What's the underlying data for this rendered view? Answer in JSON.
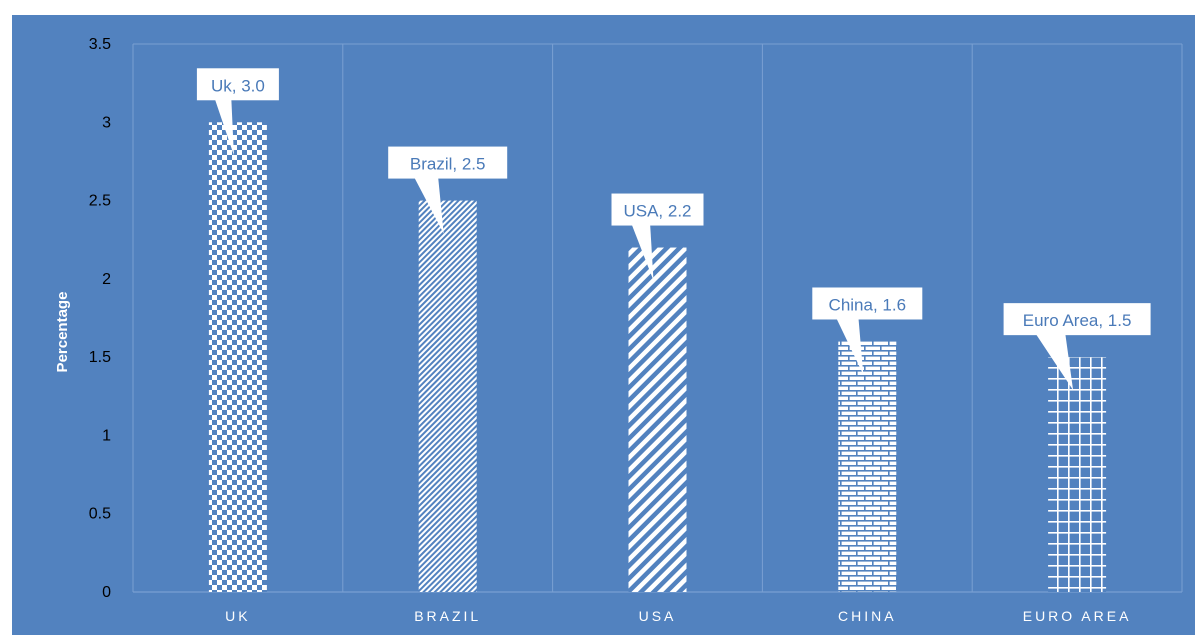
{
  "colors": {
    "background": "#5282bf",
    "bar_pattern": "#ffffff",
    "gridline": "#7aa0d2",
    "label_text": "#4a7ab8"
  },
  "chart_data": {
    "type": "bar",
    "title": "",
    "xlabel": "",
    "ylabel": "Percentage",
    "ylim": [
      0,
      3.5
    ],
    "yticks": [
      "0",
      "0.5",
      "1",
      "1.5",
      "2",
      "2.5",
      "3",
      "3.5"
    ],
    "categories": [
      "UK",
      "BRAZIL",
      "USA",
      "CHINA",
      "EURO AREA"
    ],
    "values": [
      3.0,
      2.5,
      2.2,
      1.6,
      1.5
    ],
    "data_labels": [
      "Uk, 3.0",
      "Brazil, 2.5",
      "USA, 2.2",
      "China, 1.6",
      "Euro Area, 1.5"
    ],
    "patterns": [
      "checkerboard",
      "fine-diagonal",
      "wide-diagonal",
      "brick",
      "grid"
    ],
    "grid": true,
    "legend": "none"
  }
}
